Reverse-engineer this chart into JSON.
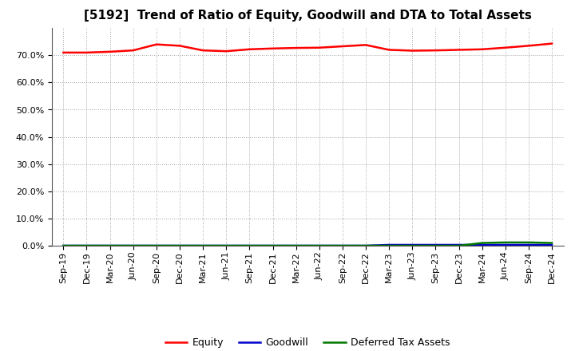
{
  "title": "[5192]  Trend of Ratio of Equity, Goodwill and DTA to Total Assets",
  "x_labels": [
    "Sep-19",
    "Dec-19",
    "Mar-20",
    "Jun-20",
    "Sep-20",
    "Dec-20",
    "Mar-21",
    "Jun-21",
    "Sep-21",
    "Dec-21",
    "Mar-22",
    "Jun-22",
    "Sep-22",
    "Dec-22",
    "Mar-23",
    "Jun-23",
    "Sep-23",
    "Dec-23",
    "Mar-24",
    "Jun-24",
    "Sep-24",
    "Dec-24"
  ],
  "equity": [
    0.71,
    0.71,
    0.713,
    0.718,
    0.74,
    0.735,
    0.718,
    0.715,
    0.722,
    0.725,
    0.727,
    0.728,
    0.733,
    0.738,
    0.72,
    0.717,
    0.718,
    0.72,
    0.722,
    0.728,
    0.735,
    0.743
  ],
  "goodwill": [
    0.0,
    0.0,
    0.0,
    0.0,
    0.0,
    0.0,
    0.0,
    0.0,
    0.0,
    0.0,
    0.0,
    0.0,
    0.0,
    0.0,
    0.003,
    0.003,
    0.003,
    0.003,
    0.003,
    0.003,
    0.003,
    0.003
  ],
  "dta": [
    0.0,
    0.0,
    0.0,
    0.0,
    0.0,
    0.0,
    0.0,
    0.0,
    0.0,
    0.0,
    0.0,
    0.0,
    0.0,
    0.0,
    0.0,
    0.0,
    0.0,
    0.0,
    0.01,
    0.012,
    0.012,
    0.01
  ],
  "equity_color": "#FF0000",
  "goodwill_color": "#0000CC",
  "dta_color": "#007700",
  "background_color": "#FFFFFF",
  "outer_background": "#FFFFFF",
  "grid_color": "#888888",
  "ylim": [
    0.0,
    0.8
  ],
  "yticks": [
    0.0,
    0.1,
    0.2,
    0.3,
    0.4,
    0.5,
    0.6,
    0.7
  ],
  "title_fontsize": 11,
  "tick_fontsize": 8,
  "legend_labels": [
    "Equity",
    "Goodwill",
    "Deferred Tax Assets"
  ],
  "linewidth": 1.8
}
